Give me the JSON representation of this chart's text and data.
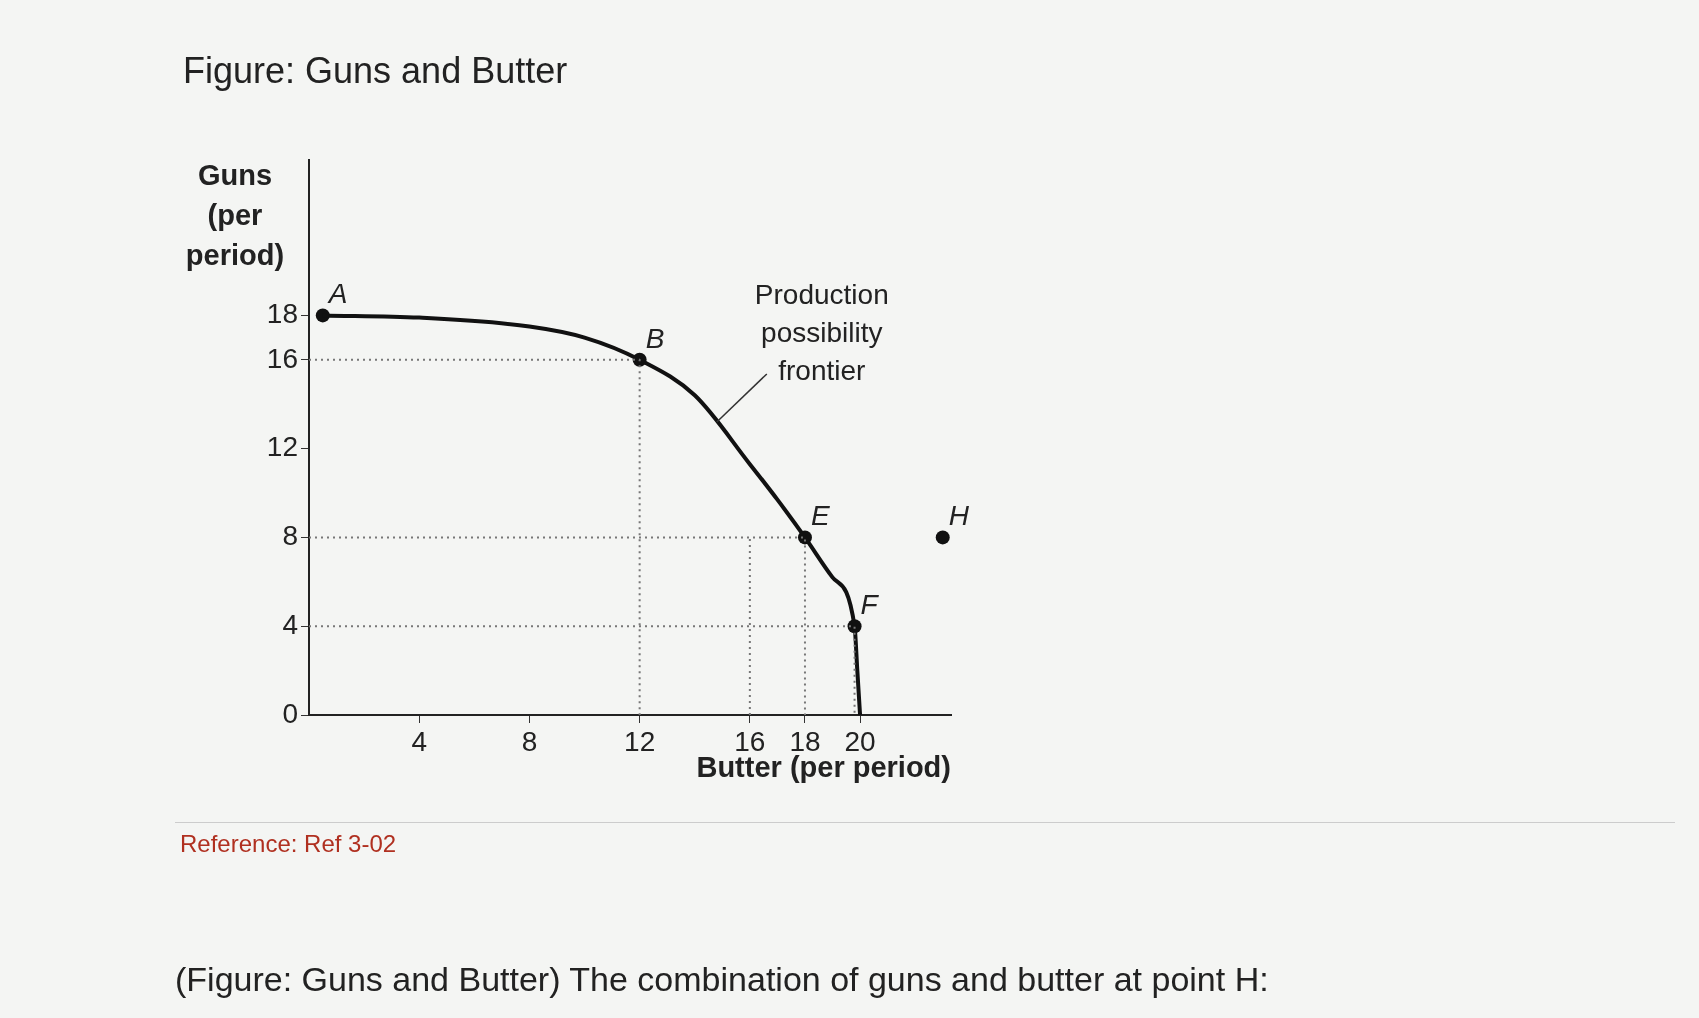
{
  "chart_data": {
    "type": "line",
    "title": "Figure: Guns and Butter",
    "xlabel": "Butter (per period)",
    "ylabel": "Guns (per period)",
    "xlim": [
      0,
      23.3
    ],
    "ylim": [
      0,
      25
    ],
    "xticks": [
      4,
      8,
      12,
      16,
      18,
      20
    ],
    "yticks": [
      0,
      4,
      8,
      12,
      16,
      18
    ],
    "grid": false,
    "legend": false,
    "series": [
      {
        "line_style": "dotted",
        "marker": "none",
        "color": "#777777",
        "x": [
          0,
          12,
          12
        ],
        "values": [
          16,
          16,
          0
        ]
      },
      {
        "line_style": "dotted",
        "marker": "none",
        "color": "#777777",
        "x": [
          0,
          18,
          18
        ],
        "values": [
          8,
          8,
          0
        ]
      },
      {
        "line_style": "dotted",
        "marker": "none",
        "color": "#777777",
        "x": [
          0,
          19.8,
          19.8
        ],
        "values": [
          4,
          4,
          0
        ]
      },
      {
        "line_style": "dotted",
        "marker": "none",
        "color": "#777777",
        "x": [
          16,
          16
        ],
        "values": [
          0,
          8
        ]
      },
      {
        "line_style": "solid",
        "marker": "none",
        "color": "#111111",
        "x": [
          0.5,
          4,
          8,
          10,
          12,
          14,
          16,
          17,
          18,
          19,
          19.8,
          19.9,
          20
        ],
        "values": [
          18,
          17.9,
          17.5,
          17,
          16,
          14.4,
          11.3,
          9.7,
          8,
          6.2,
          4,
          2,
          0
        ]
      },
      {
        "type": "scatter",
        "marker": "circle",
        "color": "#111111",
        "x": [
          0.5,
          12,
          18,
          19.8,
          23
        ],
        "values": [
          18,
          16,
          8,
          4,
          8
        ]
      }
    ],
    "annotations": [
      {
        "text": "A",
        "x": 0.5,
        "y": 18
      },
      {
        "text": "B",
        "x": 12,
        "y": 16
      },
      {
        "text": "E",
        "x": 18,
        "y": 8
      },
      {
        "text": "F",
        "x": 19.8,
        "y": 4
      },
      {
        "text": "H",
        "x": 23,
        "y": 8
      },
      {
        "text": "Production possibility frontier",
        "x": 14.8,
        "y": 13.2
      },
      "Reference: Ref 3-02",
      "(Figure: Guns and Butter) The combination of guns and butter at point H:"
    ]
  }
}
